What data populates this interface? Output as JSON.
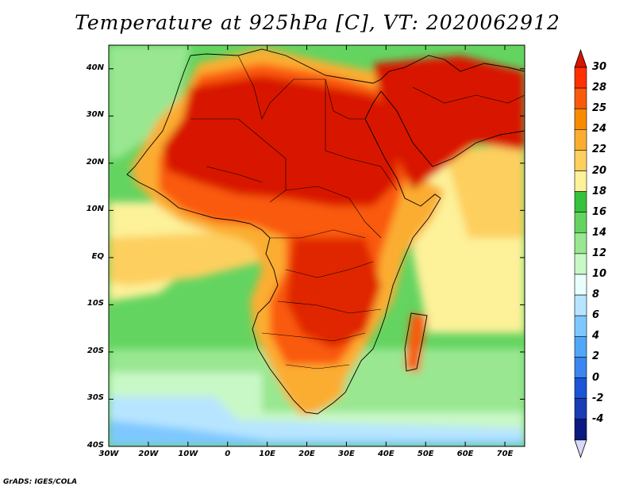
{
  "title": "Temperature at 925hPa [C], VT: 2020062912",
  "credit": "GrADS: IGES/COLA",
  "lat_labels": [
    "40N",
    "30N",
    "20N",
    "10N",
    "EQ",
    "10S",
    "20S",
    "30S",
    "40S"
  ],
  "lon_labels": [
    "30W",
    "20W",
    "10W",
    "0",
    "10E",
    "20E",
    "30E",
    "40E",
    "50E",
    "60E",
    "70E"
  ],
  "colorbar": {
    "labels": [
      "30",
      "28",
      "25",
      "24",
      "22",
      "20",
      "18",
      "16",
      "14",
      "12",
      "10",
      "8",
      "6",
      "4",
      "2",
      "0",
      "-2",
      "-4"
    ],
    "colors": [
      "#ff3100",
      "#fa5a0b",
      "#f98b00",
      "#fbad30",
      "#fdcf5e",
      "#fdf199",
      "#36c23c",
      "#64d460",
      "#99e791",
      "#c9f8c7",
      "#e9fffd",
      "#b7e5ff",
      "#7ec8ff",
      "#50a7f7",
      "#3a86ee",
      "#1a55d6",
      "#1a3cb5",
      "#0a1a7e"
    ],
    "top_arrow_color": "#d81400",
    "bottom_arrow_color": "#d8d8fa"
  },
  "map_colors": {
    "ocean_warm": "#fdf199",
    "ocean_temperate": "#64d460",
    "ocean_cool": "#99e791",
    "ocean_cold": "#c9f8c7",
    "ocean_very_cold": "#b7e5ff",
    "ocean_polar": "#7ec8ff",
    "land_hot": "#e02500",
    "land_very_hot": "#d81400",
    "land_warm": "#fa5a0b",
    "land_mild": "#fbad30"
  }
}
